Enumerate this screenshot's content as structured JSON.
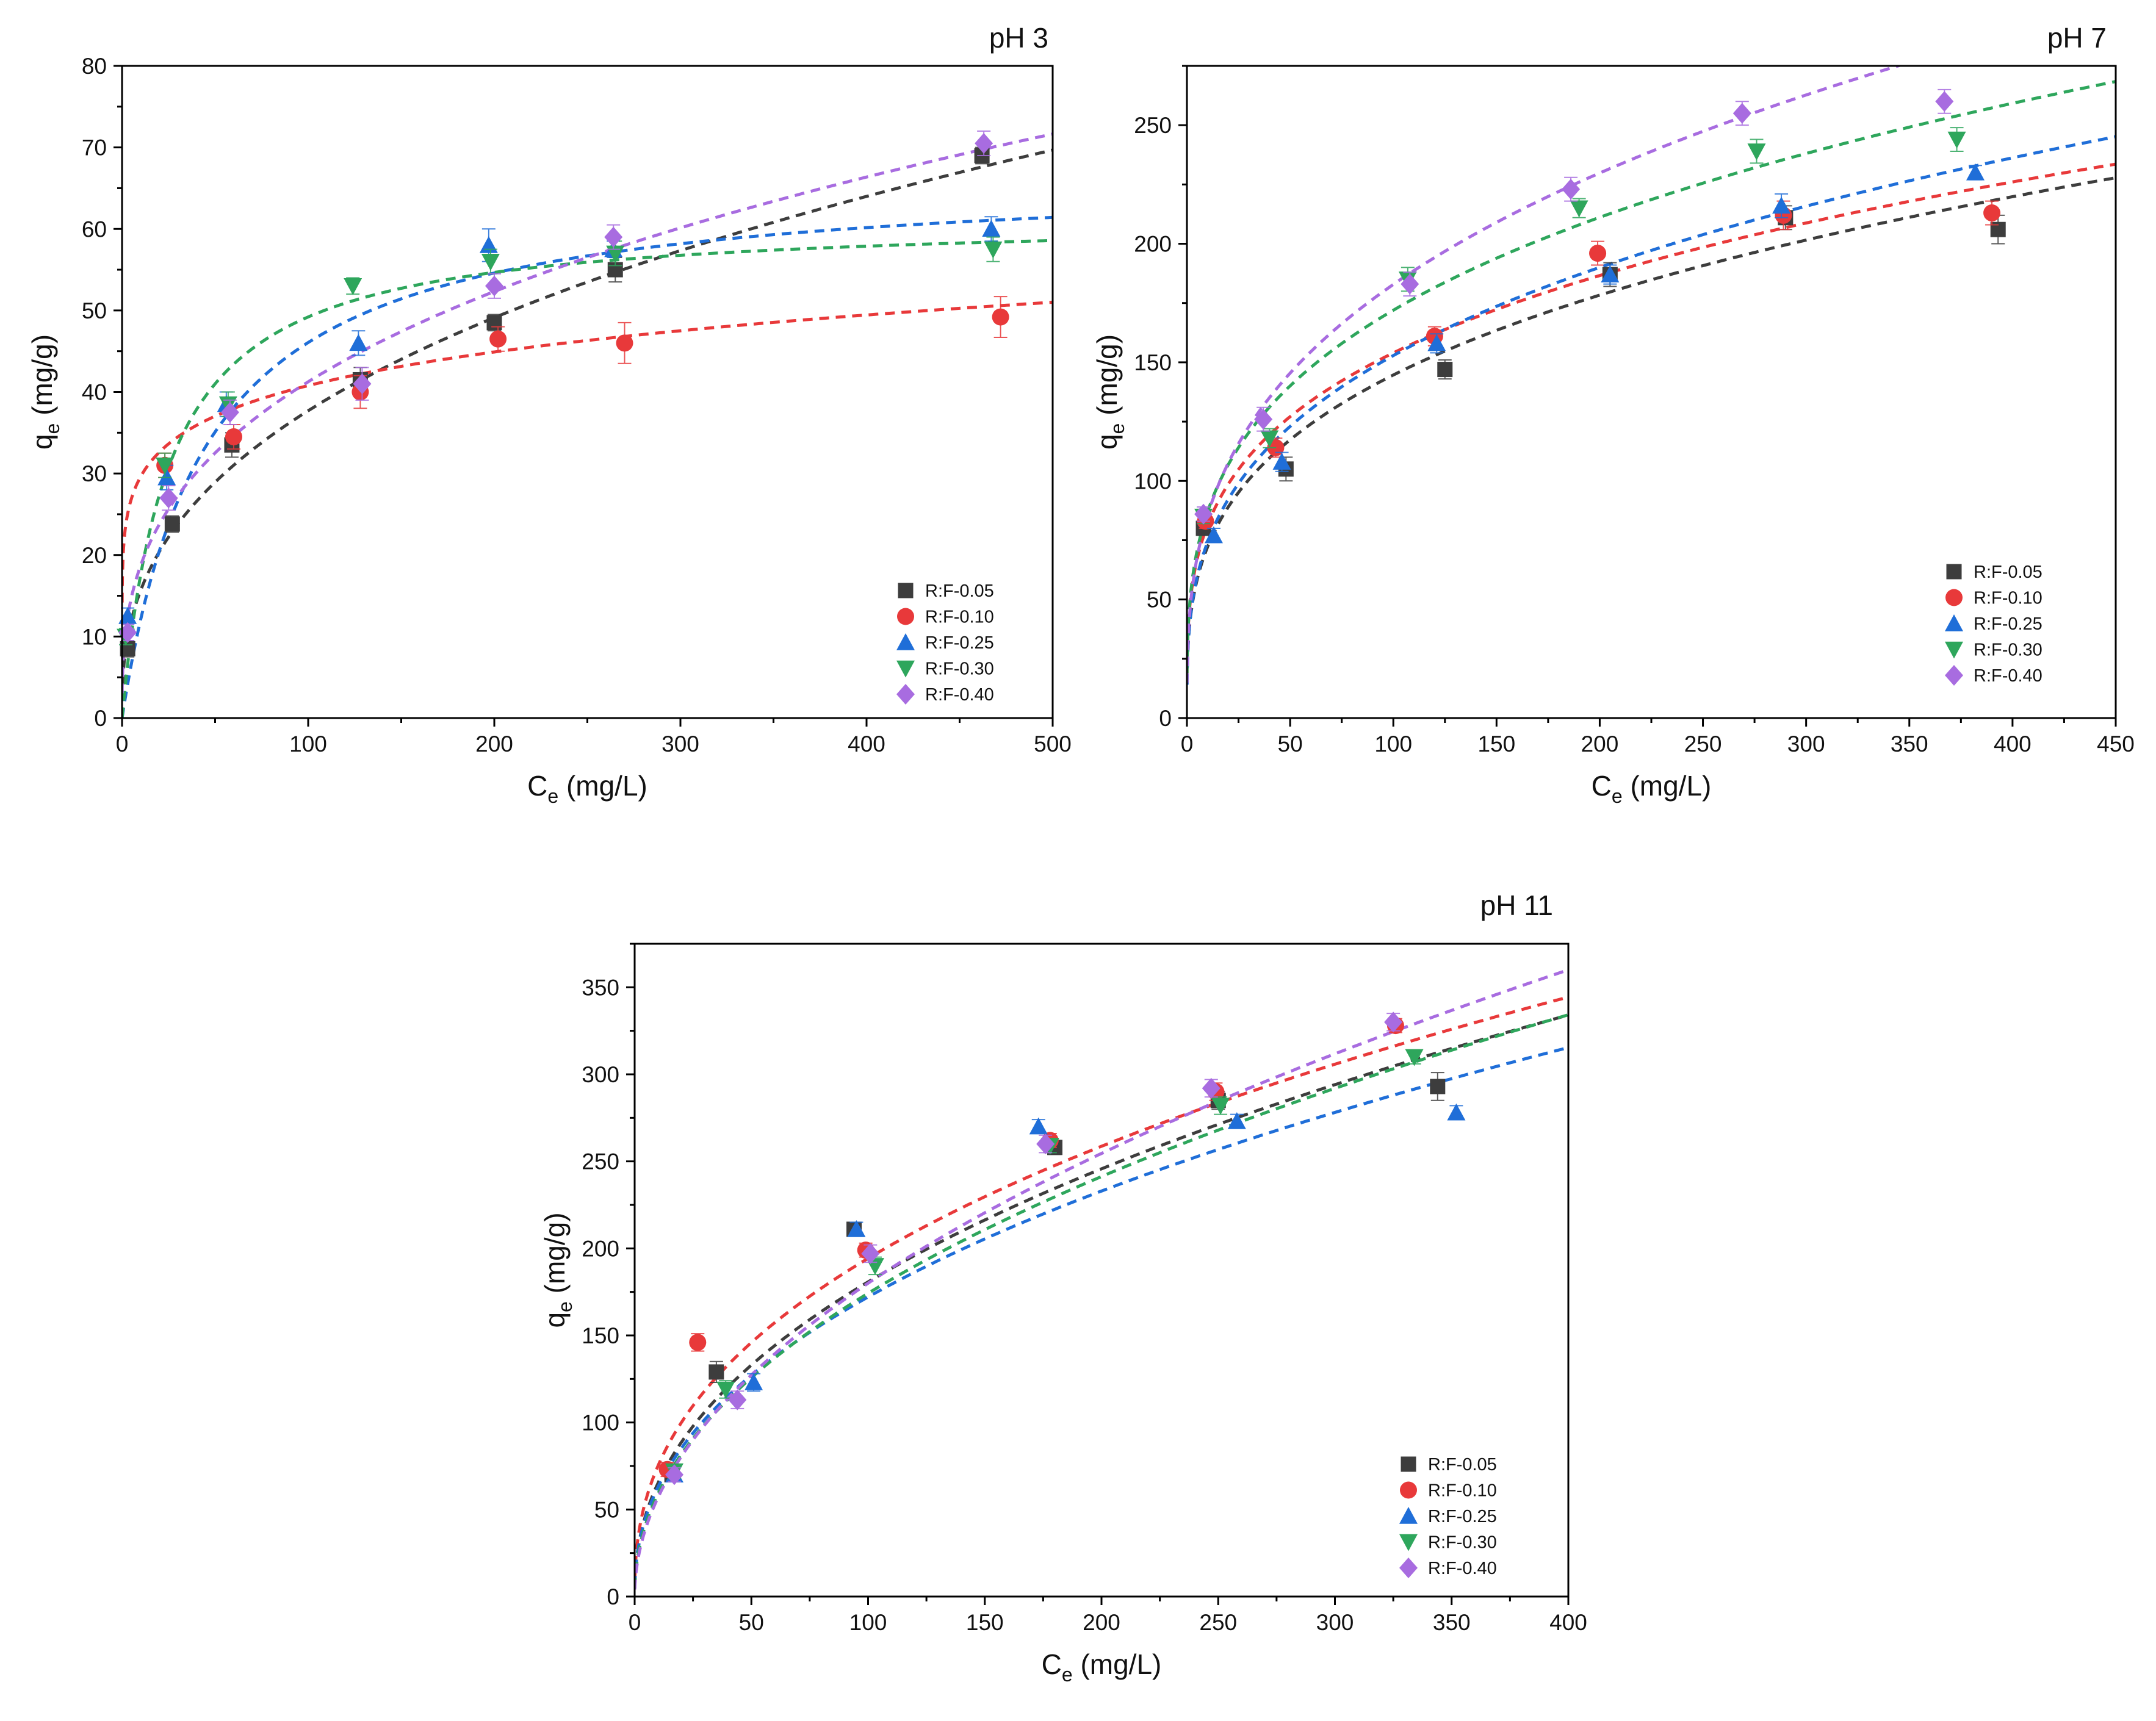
{
  "figure": {
    "description_text": ""
  },
  "chart_data": [
    {
      "type": "scatter",
      "title": "pH 3",
      "xlabel": {
        "main": "C",
        "sub": "e",
        "unit": " (mg/L)"
      },
      "ylabel": {
        "main": "q",
        "sub": "e",
        "unit": " (mg/g)"
      },
      "xlim": [
        0,
        500
      ],
      "ylim": [
        0,
        80
      ],
      "xticks": [
        0,
        100,
        200,
        300,
        400,
        500
      ],
      "yticks": [
        0,
        10,
        20,
        30,
        40,
        50,
        60,
        70,
        80
      ],
      "legend_position": "bottom-right",
      "series": [
        {
          "name": "R:F-0.05",
          "color": "#3d3d3d",
          "marker": "square",
          "x": [
            3,
            27,
            59,
            128,
            200,
            265,
            462
          ],
          "y": [
            8.5,
            23.8,
            33.5,
            41.5,
            48.5,
            55,
            69
          ],
          "err": [
            1,
            1,
            1.5,
            1.5,
            1,
            1.5,
            1
          ],
          "fit": {
            "model": "freundlich",
            "K": 6.5,
            "n": 0.3817
          }
        },
        {
          "name": "R:F-0.10",
          "color": "#e8393a",
          "marker": "circle",
          "x": [
            23,
            60,
            128,
            202,
            270,
            472
          ],
          "y": [
            31,
            34.5,
            40,
            46.5,
            46,
            49.2
          ],
          "err": [
            1.5,
            1.5,
            2,
            1.5,
            2.5,
            2.5
          ],
          "fit": {
            "model": "freundlich",
            "K": 21.5,
            "n": 0.139
          }
        },
        {
          "name": "R:F-0.25",
          "color": "#1f6ed8",
          "marker": "triangle-up",
          "x": [
            3,
            24,
            56,
            127,
            197,
            264,
            467
          ],
          "y": [
            12.5,
            29.5,
            38.5,
            46,
            58,
            57.5,
            60
          ],
          "err": [
            1,
            1.5,
            1.5,
            1.5,
            2,
            1,
            1.5
          ],
          "fit": {
            "model": "langmuir",
            "qm": 67,
            "KL": 0.022
          }
        },
        {
          "name": "R:F-0.30",
          "color": "#2ea65c",
          "marker": "triangle-down",
          "x": [
            2,
            23,
            57,
            124,
            198,
            265,
            468
          ],
          "y": [
            10,
            31,
            38.5,
            53,
            56,
            57,
            57.5
          ],
          "err": [
            1,
            1.5,
            1.5,
            1,
            1.5,
            1.5,
            1.5
          ],
          "fit": {
            "model": "langmuir",
            "qm": 61.5,
            "KL": 0.04
          }
        },
        {
          "name": "R:F-0.40",
          "color": "#a86ce0",
          "marker": "diamond",
          "x": [
            3,
            25,
            58,
            129,
            200,
            264,
            463
          ],
          "y": [
            10.5,
            27,
            37.5,
            41,
            53,
            59,
            70.5
          ],
          "err": [
            1,
            1.5,
            1.5,
            2,
            1.5,
            1.5,
            1.5
          ],
          "fit": {
            "model": "freundlich",
            "K": 8.5,
            "n": 0.343
          }
        }
      ]
    },
    {
      "type": "scatter",
      "title": "pH 7",
      "xlabel": {
        "main": "C",
        "sub": "e",
        "unit": " (mg/L)"
      },
      "ylabel": {
        "main": "q",
        "sub": "e",
        "unit": " (mg/g)"
      },
      "xlim": [
        0,
        450
      ],
      "ylim": [
        0,
        275
      ],
      "xticks": [
        0,
        50,
        100,
        150,
        200,
        250,
        300,
        350,
        400,
        450
      ],
      "yticks": [
        0,
        50,
        100,
        150,
        200,
        250
      ],
      "legend_position": "bottom-right",
      "series": [
        {
          "name": "R:F-0.05",
          "color": "#3d3d3d",
          "marker": "square",
          "x": [
            8,
            48,
            125,
            205,
            290,
            393
          ],
          "y": [
            80,
            105,
            147,
            187,
            211,
            206
          ],
          "err": [
            3,
            5,
            4,
            5,
            5,
            6
          ],
          "fit": {
            "model": "freundlich",
            "K": 36,
            "n": 0.302
          }
        },
        {
          "name": "R:F-0.10",
          "color": "#e8393a",
          "marker": "circle",
          "x": [
            9,
            43,
            120,
            199,
            289,
            390
          ],
          "y": [
            83,
            114,
            161,
            196,
            212,
            213
          ],
          "err": [
            3,
            4,
            4,
            5,
            6,
            5
          ],
          "fit": {
            "model": "freundlich",
            "K": 43,
            "n": 0.277
          }
        },
        {
          "name": "R:F-0.25",
          "color": "#1f6ed8",
          "marker": "triangle-up",
          "x": [
            13,
            46,
            121,
            205,
            288,
            382
          ],
          "y": [
            77,
            108,
            158,
            187,
            216,
            230
          ],
          "err": [
            3,
            4,
            4,
            4,
            5,
            3
          ],
          "fit": {
            "model": "freundlich",
            "K": 36,
            "n": 0.314
          }
        },
        {
          "name": "R:F-0.30",
          "color": "#2ea65c",
          "marker": "triangle-down",
          "x": [
            8,
            40,
            107,
            190,
            276,
            373
          ],
          "y": [
            85,
            118,
            185,
            215,
            239,
            244
          ],
          "err": [
            3,
            4,
            5,
            4,
            5,
            5
          ],
          "fit": {
            "model": "freundlich",
            "K": 44,
            "n": 0.296
          }
        },
        {
          "name": "R:F-0.40",
          "color": "#a86ce0",
          "marker": "diamond",
          "x": [
            8,
            37,
            108,
            186,
            269,
            367
          ],
          "y": [
            86,
            126,
            183,
            223,
            255,
            260
          ],
          "err": [
            3,
            5,
            5,
            5,
            5,
            5
          ],
          "fit": {
            "model": "freundlich",
            "K": 40,
            "n": 0.33
          }
        }
      ]
    },
    {
      "type": "scatter",
      "title": "pH 11",
      "xlabel": {
        "main": "C",
        "sub": "e",
        "unit": " (mg/L)"
      },
      "ylabel": {
        "main": "q",
        "sub": "e",
        "unit": " (mg/g)"
      },
      "xlim": [
        0,
        400
      ],
      "ylim": [
        0,
        375
      ],
      "xticks": [
        0,
        50,
        100,
        150,
        200,
        250,
        300,
        350,
        400
      ],
      "yticks": [
        0,
        50,
        100,
        150,
        200,
        250,
        300,
        350
      ],
      "legend_position": "bottom-right",
      "series": [
        {
          "name": "R:F-0.05",
          "color": "#3d3d3d",
          "marker": "square",
          "x": [
            16,
            35,
            94,
            180,
            250,
            344
          ],
          "y": [
            70,
            129,
            211,
            258,
            285,
            293
          ],
          "err": [
            4,
            6,
            4,
            4,
            5,
            8
          ],
          "fit": {
            "model": "freundlich",
            "K": 23.5,
            "n": 0.443
          }
        },
        {
          "name": "R:F-0.10",
          "color": "#e8393a",
          "marker": "circle",
          "x": [
            14,
            27,
            99,
            178,
            249,
            326
          ],
          "y": [
            73,
            146,
            199,
            262,
            290,
            328
          ],
          "err": [
            4,
            5,
            4,
            4,
            5,
            4
          ],
          "fit": {
            "model": "freundlich",
            "K": 29,
            "n": 0.413
          }
        },
        {
          "name": "R:F-0.25",
          "color": "#1f6ed8",
          "marker": "triangle-up",
          "x": [
            17,
            51,
            95,
            173,
            258,
            352
          ],
          "y": [
            70,
            123,
            211,
            270,
            273,
            278
          ],
          "err": [
            4,
            5,
            4,
            4,
            4,
            4
          ],
          "fit": {
            "model": "freundlich",
            "K": 23,
            "n": 0.437
          }
        },
        {
          "name": "R:F-0.30",
          "color": "#2ea65c",
          "marker": "triangle-down",
          "x": [
            17,
            39,
            103,
            178,
            251,
            334
          ],
          "y": [
            72,
            119,
            190,
            259,
            282,
            310
          ],
          "err": [
            4,
            5,
            5,
            4,
            5,
            4
          ],
          "fit": {
            "model": "freundlich",
            "K": 20,
            "n": 0.47
          }
        },
        {
          "name": "R:F-0.40",
          "color": "#a86ce0",
          "marker": "diamond",
          "x": [
            17,
            44,
            101,
            176,
            247,
            325
          ],
          "y": [
            70,
            113,
            197,
            260,
            292,
            330
          ],
          "err": [
            4,
            5,
            5,
            5,
            5,
            5
          ],
          "fit": {
            "model": "freundlich",
            "K": 18,
            "n": 0.5
          }
        }
      ]
    }
  ]
}
